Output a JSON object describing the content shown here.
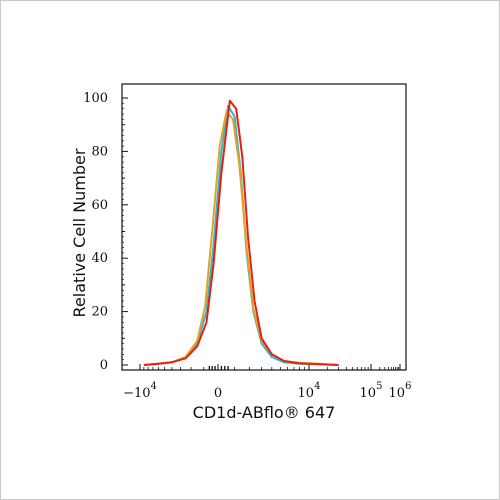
{
  "chart_data": {
    "type": "line",
    "xlabel": "CD1d-ABflo® 647",
    "ylabel": "Relative Cell Number",
    "xscale": "biexponential",
    "ylim": [
      0,
      100
    ],
    "yticks": [
      "0",
      "20",
      "40",
      "60",
      "80",
      "100"
    ],
    "xticks": [
      {
        "value": -10000,
        "base": "−10",
        "exp": "4"
      },
      {
        "value": 0,
        "base": "0",
        "exp": ""
      },
      {
        "value": 10000,
        "base": "10",
        "exp": "4"
      },
      {
        "value": 100000,
        "base": "10",
        "exp": "5"
      },
      {
        "value": 1000000,
        "base": "10",
        "exp": "6"
      }
    ],
    "grid": false,
    "legend": "none",
    "series": [
      {
        "color": "#29b8d6",
        "x": [
          -9000,
          -6000,
          -4000,
          -2500,
          -1500,
          -800,
          -300,
          200,
          600,
          1000,
          1400,
          1800,
          2300,
          3000,
          4000,
          5500,
          8000,
          15000,
          30000
        ],
        "y": [
          0,
          0.5,
          1,
          3,
          8,
          20,
          45,
          80,
          97,
          93,
          72,
          42,
          20,
          8,
          3,
          1,
          0.5,
          0.3,
          0
        ]
      },
      {
        "color": "#e8a020",
        "x": [
          -9000,
          -6000,
          -4000,
          -2500,
          -1500,
          -900,
          -400,
          100,
          500,
          900,
          1300,
          1800,
          2300,
          3000,
          4000,
          5500,
          8000,
          15000,
          30000
        ],
        "y": [
          0,
          0.5,
          1,
          3,
          9,
          22,
          50,
          82,
          95,
          92,
          75,
          44,
          21,
          9,
          4,
          1.5,
          0.8,
          0.5,
          0
        ]
      },
      {
        "color": "#e82010",
        "x": [
          -9000,
          -6000,
          -4000,
          -2500,
          -1500,
          -800,
          -300,
          200,
          700,
          1100,
          1500,
          1900,
          2400,
          3000,
          4000,
          5500,
          8000,
          15000,
          30000
        ],
        "y": [
          0,
          0.5,
          1,
          2.5,
          7,
          16,
          38,
          72,
          99,
          96,
          78,
          48,
          24,
          10,
          4,
          1.5,
          0.6,
          0.3,
          0
        ]
      }
    ]
  }
}
